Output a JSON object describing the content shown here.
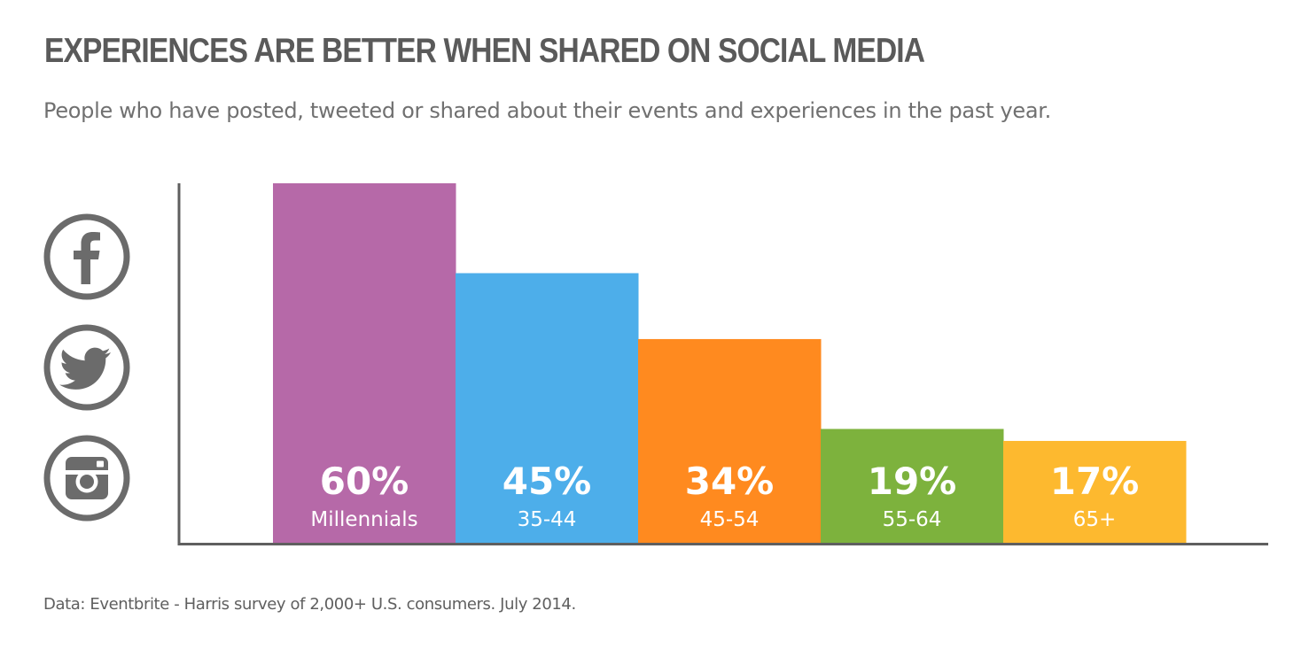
{
  "title": "EXPERIENCES ARE BETTER WHEN SHARED ON SOCIAL MEDIA",
  "subtitle": "People who have posted, tweeted or shared about their events and experiences in the past year.",
  "source": "Data: Eventbrite - Harris survey of 2,000+ U.S. consumers. July 2014.",
  "icons": [
    "facebook-icon",
    "twitter-icon",
    "instagram-icon"
  ],
  "colors": {
    "title": "#5a5a5a",
    "axis": "#5f5f5f",
    "icon": "#6b6b6b"
  },
  "chart_data": {
    "type": "bar",
    "categories": [
      "Millennials",
      "35-44",
      "45-54",
      "55-64",
      "65+"
    ],
    "values": [
      60,
      45,
      34,
      19,
      17
    ],
    "value_labels": [
      "60%",
      "45%",
      "34%",
      "19%",
      "17%"
    ],
    "bar_colors": [
      "#b669a8",
      "#4daeea",
      "#ff8a1f",
      "#7db23d",
      "#fdb92f"
    ],
    "unit": "%",
    "ylim": [
      0,
      60
    ],
    "grid": false,
    "legend": "none"
  }
}
